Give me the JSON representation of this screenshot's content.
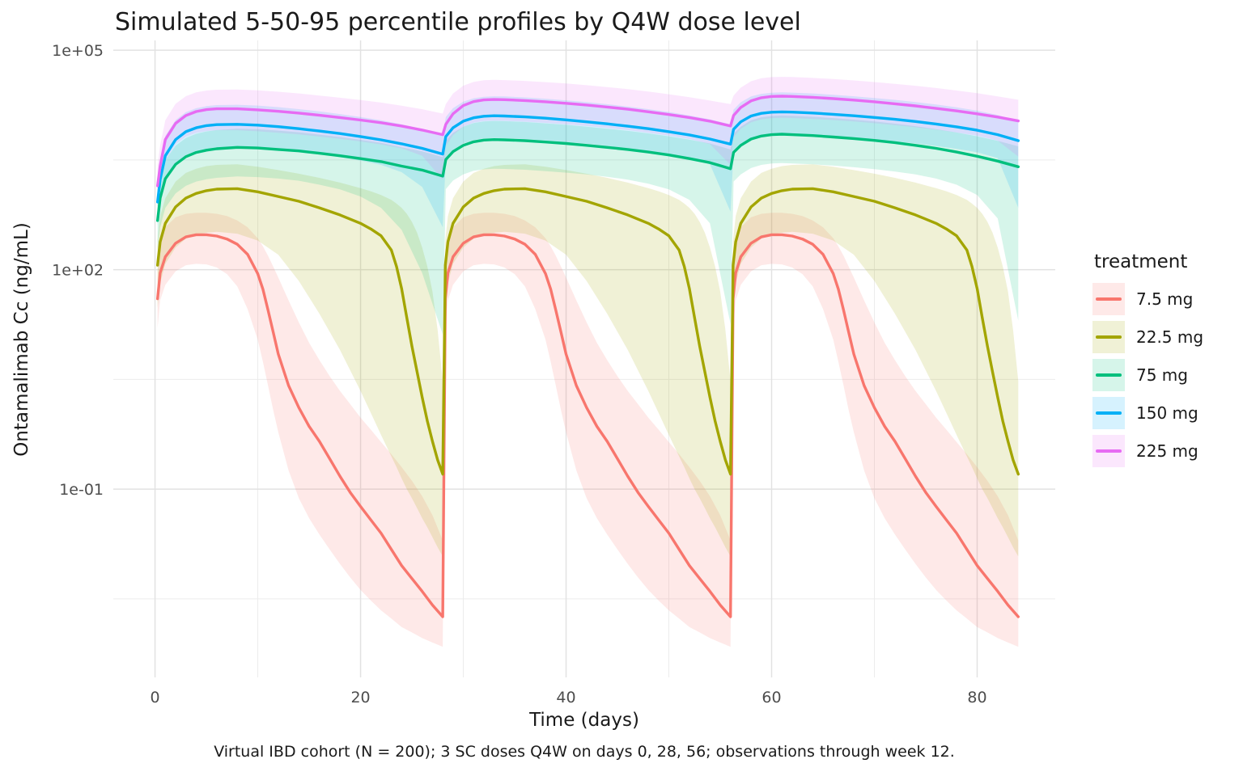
{
  "chart_data": {
    "type": "line",
    "title": "Simulated 5-50-95 percentile profiles by Q4W dose level",
    "xlabel": "Time (days)",
    "ylabel": "Ontamalimab Cc (ng/mL)",
    "caption": "Virtual IBD cohort (N = 200); 3 SC doses Q4W on days 0, 28, 56; observations through week 12.",
    "legend_title": "treatment",
    "legend_position": "right",
    "grid": true,
    "y_scale": "log10",
    "percentiles": [
      5,
      50,
      95
    ],
    "dose_days": [
      0,
      28,
      56
    ],
    "xlim": [
      -4.06,
      87.6
    ],
    "ylim": [
      0.000267,
      136000
    ],
    "x_ticks": [
      {
        "value": 0,
        "label": "0"
      },
      {
        "value": 20,
        "label": "20"
      },
      {
        "value": 40,
        "label": "40"
      },
      {
        "value": 60,
        "label": "60"
      },
      {
        "value": 80,
        "label": "80"
      }
    ],
    "x_minor_ticks": [
      10,
      30,
      50,
      70
    ],
    "y_ticks": [
      {
        "value": 0.1,
        "label": "1e-01"
      },
      {
        "value": 100,
        "label": "1e+02"
      },
      {
        "value": 100000,
        "label": "1e+05"
      }
    ],
    "y_minor_ticks": [
      0.00316228,
      3.16228,
      3162.28
    ],
    "ribbon_alpha": 0.16,
    "series": [
      {
        "name": "7.5 mg",
        "color": "#F8766D",
        "cycle_starts": [
          0,
          28,
          56
        ],
        "cycle": {
          "offsets": [
            0.25,
            0.5,
            1,
            2,
            3,
            4,
            5,
            6,
            7,
            8,
            9,
            10,
            10.5,
            11,
            11.5,
            12,
            13,
            14,
            15,
            16,
            17,
            18,
            19,
            20,
            21,
            22,
            23,
            24,
            25,
            26,
            27,
            28
          ],
          "p50": [
            40,
            90,
            150,
            230,
            280,
            300,
            300,
            288,
            262,
            222,
            162,
            88,
            54,
            28,
            14,
            7,
            2.6,
            1.3,
            0.72,
            0.45,
            0.26,
            0.15,
            0.09,
            0.058,
            0.038,
            0.025,
            0.015,
            0.009,
            0.006,
            0.004,
            0.0026,
            0.0018
          ],
          "p95": [
            95,
            220,
            380,
            520,
            580,
            600,
            600,
            580,
            540,
            470,
            380,
            268,
            208,
            155,
            110,
            78,
            38,
            19,
            10,
            5.8,
            3.5,
            2.2,
            1.45,
            0.95,
            0.65,
            0.44,
            0.3,
            0.2,
            0.13,
            0.08,
            0.044,
            0.02
          ],
          "p5": [
            16,
            38,
            62,
            95,
            115,
            120,
            118,
            107,
            87,
            59,
            29,
            11,
            5.5,
            2.6,
            1.2,
            0.6,
            0.18,
            0.075,
            0.04,
            0.024,
            0.015,
            0.0095,
            0.0062,
            0.0042,
            0.003,
            0.0022,
            0.0017,
            0.0013,
            0.0011,
            0.00092,
            0.0008,
            0.0007
          ]
        }
      },
      {
        "name": "22.5 mg",
        "color": "#A3A500",
        "cycle_starts": [
          0,
          28,
          56
        ],
        "cycle": {
          "offsets": [
            0.25,
            0.5,
            1,
            2,
            3,
            4,
            5,
            6,
            8,
            10,
            12,
            14,
            16,
            18,
            20,
            21,
            22,
            23,
            23.5,
            24,
            24.5,
            25,
            25.5,
            26,
            26.5,
            27,
            27.5,
            28
          ],
          "p50": [
            115,
            240,
            430,
            720,
            950,
            1100,
            1200,
            1260,
            1280,
            1160,
            1000,
            860,
            700,
            560,
            430,
            360,
            290,
            185,
            110,
            55,
            22,
            9,
            4,
            1.8,
            0.85,
            0.45,
            0.25,
            0.16
          ],
          "p95": [
            255,
            540,
            950,
            1600,
            2100,
            2400,
            2600,
            2700,
            2750,
            2550,
            2300,
            2050,
            1800,
            1550,
            1300,
            1180,
            1050,
            900,
            800,
            700,
            580,
            450,
            320,
            200,
            110,
            50,
            15,
            3
          ],
          "p5": [
            30,
            65,
            120,
            200,
            265,
            300,
            320,
            330,
            310,
            250,
            160,
            70,
            25,
            8,
            2.2,
            1.1,
            0.55,
            0.28,
            0.2,
            0.14,
            0.1,
            0.075,
            0.055,
            0.04,
            0.03,
            0.022,
            0.016,
            0.012
          ]
        }
      },
      {
        "name": "75 mg",
        "color": "#00BF7D",
        "points": {
          "t": [
            0.25,
            0.5,
            1,
            2,
            3,
            4,
            5,
            6,
            8,
            10,
            12,
            14,
            16,
            18,
            20,
            22,
            24,
            26,
            28,
            28.3,
            29,
            30,
            31,
            32,
            33,
            34,
            36,
            38,
            40,
            42,
            44,
            46,
            48,
            50,
            52,
            54,
            56,
            56.3,
            57,
            58,
            59,
            60,
            61,
            62,
            64,
            66,
            68,
            70,
            72,
            74,
            76,
            78,
            80,
            82,
            84
          ],
          "p50": [
            470,
            950,
            1750,
            2750,
            3500,
            4000,
            4300,
            4500,
            4700,
            4600,
            4400,
            4200,
            3900,
            3600,
            3300,
            3000,
            2600,
            2300,
            1900,
            3200,
            4100,
            5000,
            5600,
            5900,
            6000,
            5950,
            5800,
            5550,
            5300,
            5000,
            4700,
            4400,
            4050,
            3700,
            3300,
            2900,
            2400,
            4000,
            5000,
            6100,
            6700,
            7000,
            7100,
            7000,
            6800,
            6500,
            6200,
            5850,
            5450,
            5000,
            4550,
            4050,
            3550,
            3050,
            2550
          ],
          "p95": [
            850,
            1700,
            3150,
            4950,
            6300,
            7200,
            7750,
            8100,
            8450,
            8300,
            7950,
            7550,
            7000,
            6500,
            5950,
            5400,
            4700,
            4150,
            3450,
            5800,
            7400,
            9000,
            10100,
            10600,
            10800,
            10700,
            10450,
            10000,
            9550,
            9000,
            8450,
            7900,
            7300,
            6650,
            6000,
            5300,
            4400,
            7200,
            9000,
            11000,
            12100,
            12600,
            12800,
            12650,
            12300,
            11800,
            11250,
            10600,
            9900,
            9150,
            8350,
            7500,
            6650,
            5750,
            4850
          ],
          "p5": [
            190,
            380,
            700,
            1100,
            1400,
            1600,
            1720,
            1800,
            1880,
            1840,
            1760,
            1640,
            1450,
            1250,
            1000,
            700,
            350,
            90,
            13,
            1260,
            1650,
            2000,
            2250,
            2350,
            2400,
            2380,
            2320,
            2220,
            2120,
            2000,
            1860,
            1700,
            1500,
            1250,
            900,
            430,
            18,
            1600,
            2000,
            2450,
            2700,
            2820,
            2860,
            2830,
            2750,
            2640,
            2510,
            2360,
            2190,
            2000,
            1760,
            1450,
            1050,
            500,
            20
          ]
        }
      },
      {
        "name": "150 mg",
        "color": "#00B0F6",
        "points": {
          "t": [
            0.25,
            0.5,
            1,
            2,
            3,
            4,
            5,
            6,
            8,
            10,
            12,
            14,
            16,
            18,
            20,
            22,
            24,
            26,
            28,
            28.3,
            29,
            30,
            31,
            32,
            33,
            34,
            36,
            38,
            40,
            42,
            44,
            46,
            48,
            50,
            52,
            54,
            56,
            56.3,
            57,
            58,
            59,
            60,
            61,
            62,
            64,
            66,
            68,
            70,
            72,
            74,
            76,
            78,
            80,
            82,
            84
          ],
          "p50": [
            840,
            1700,
            3600,
            6000,
            7700,
            8700,
            9300,
            9600,
            9700,
            9450,
            9000,
            8450,
            7850,
            7250,
            6600,
            5950,
            5250,
            4550,
            3800,
            6600,
            8700,
            10700,
            11900,
            12500,
            12700,
            12600,
            12250,
            11750,
            11150,
            10500,
            9850,
            9150,
            8450,
            7700,
            6950,
            6100,
            5200,
            8300,
            10500,
            12600,
            13700,
            14200,
            14350,
            14250,
            13850,
            13300,
            12700,
            12050,
            11350,
            10600,
            9800,
            8950,
            8050,
            7000,
            5800
          ],
          "p95": [
            1550,
            3150,
            6700,
            11100,
            14200,
            16100,
            17200,
            17750,
            17950,
            17500,
            16650,
            15650,
            14550,
            13400,
            12200,
            11000,
            9700,
            8400,
            7000,
            12200,
            16100,
            19800,
            22000,
            23100,
            23450,
            23300,
            22650,
            21700,
            20650,
            19500,
            18250,
            17000,
            15650,
            14300,
            12850,
            11350,
            9700,
            15400,
            19400,
            23300,
            25300,
            26250,
            26500,
            26300,
            25600,
            24600,
            23450,
            22250,
            20950,
            19550,
            18100,
            16550,
            14900,
            13000,
            10700
          ],
          "p5": [
            400,
            810,
            1700,
            2900,
            3700,
            4150,
            4450,
            4600,
            4650,
            4520,
            4300,
            4050,
            3760,
            3450,
            3100,
            2700,
            2150,
            1350,
            380,
            3300,
            4300,
            5300,
            5900,
            6200,
            6300,
            6260,
            6080,
            5840,
            5560,
            5250,
            4920,
            4570,
            4200,
            3800,
            3350,
            2750,
            620,
            4150,
            5250,
            6300,
            6850,
            7100,
            7180,
            7120,
            6930,
            6650,
            6350,
            6020,
            5670,
            5300,
            4900,
            4480,
            4020,
            3350,
            700
          ]
        }
      },
      {
        "name": "225 mg",
        "color": "#E76BF3",
        "points": {
          "t": [
            0.25,
            0.5,
            1,
            2,
            3,
            4,
            5,
            6,
            8,
            10,
            12,
            14,
            16,
            18,
            20,
            22,
            24,
            26,
            28,
            28.3,
            29,
            30,
            31,
            32,
            33,
            34,
            36,
            38,
            40,
            42,
            44,
            46,
            48,
            50,
            52,
            54,
            56,
            56.3,
            57,
            58,
            59,
            60,
            61,
            62,
            64,
            66,
            68,
            70,
            72,
            74,
            76,
            78,
            80,
            82,
            84
          ],
          "p50": [
            1400,
            2600,
            6000,
            10000,
            12800,
            14500,
            15400,
            15800,
            15800,
            15300,
            14600,
            13800,
            12900,
            12000,
            11100,
            10200,
            9200,
            8100,
            7000,
            9700,
            13500,
            17500,
            19800,
            20900,
            21200,
            21050,
            20500,
            19700,
            18800,
            17800,
            16700,
            15600,
            14400,
            13200,
            12000,
            10700,
            9200,
            12800,
            16500,
            20300,
            22400,
            23300,
            23500,
            23350,
            22700,
            21800,
            20800,
            19700,
            18500,
            17300,
            16000,
            14800,
            13500,
            12200,
            10800
          ],
          "p95": [
            2700,
            5000,
            11000,
            18500,
            23500,
            26500,
            28100,
            28800,
            29000,
            28200,
            27000,
            25600,
            24000,
            22400,
            20800,
            19200,
            17400,
            15600,
            13600,
            18300,
            25500,
            32700,
            36800,
            38800,
            39300,
            39000,
            38000,
            36600,
            35000,
            33200,
            31300,
            29300,
            27200,
            25000,
            22800,
            20500,
            18300,
            24000,
            30800,
            37600,
            41300,
            42800,
            43200,
            43000,
            41800,
            40300,
            38600,
            36700,
            34700,
            32600,
            30400,
            28100,
            25800,
            23400,
            21000
          ],
          "p5": [
            720,
            1350,
            3100,
            5200,
            6600,
            7400,
            7850,
            8050,
            8050,
            7800,
            7450,
            7050,
            6600,
            6150,
            5650,
            5150,
            4550,
            3600,
            1700,
            4900,
            6900,
            9000,
            10200,
            10750,
            10900,
            10850,
            10550,
            10150,
            9700,
            9200,
            8650,
            8100,
            7450,
            6800,
            6100,
            5200,
            2700,
            6500,
            8400,
            10300,
            11350,
            11800,
            11900,
            11830,
            11500,
            11100,
            10600,
            10050,
            9470,
            8850,
            8200,
            7500,
            6800,
            5800,
            3500
          ]
        }
      }
    ]
  }
}
